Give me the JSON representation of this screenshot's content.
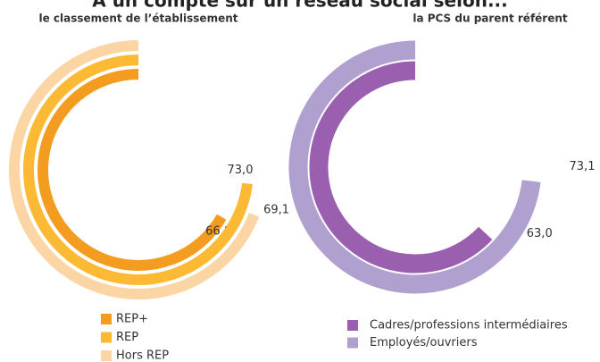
{
  "title": "A un compte sur un réseau social selon...",
  "chart_data": [
    {
      "type": "radial_bar",
      "subtitle": "le classement de l’établissement",
      "ylim": [
        0,
        100
      ],
      "series": [
        {
          "name": "REP+",
          "color": "#f39c1f",
          "values": [
            66.8
          ],
          "value_labels": [
            "66,8"
          ]
        },
        {
          "name": "REP",
          "color": "#fbb934",
          "values": [
            73.0
          ],
          "value_labels": [
            "73,0"
          ]
        },
        {
          "name": "Hors REP",
          "color": "#fcd5a5",
          "values": [
            69.1
          ],
          "value_labels": [
            "69,1"
          ]
        }
      ]
    },
    {
      "type": "radial_bar",
      "subtitle": "la PCS du parent référent",
      "ylim": [
        0,
        100
      ],
      "series": [
        {
          "name": "Cadres/professions intermédiaires",
          "color": "#9b5fb0",
          "values": [
            63.0
          ],
          "value_labels": [
            "63,0"
          ]
        },
        {
          "name": "Employés/ouvriers",
          "color": "#b0a0d0",
          "values": [
            73.1
          ],
          "value_labels": [
            "73,1"
          ]
        }
      ]
    }
  ]
}
